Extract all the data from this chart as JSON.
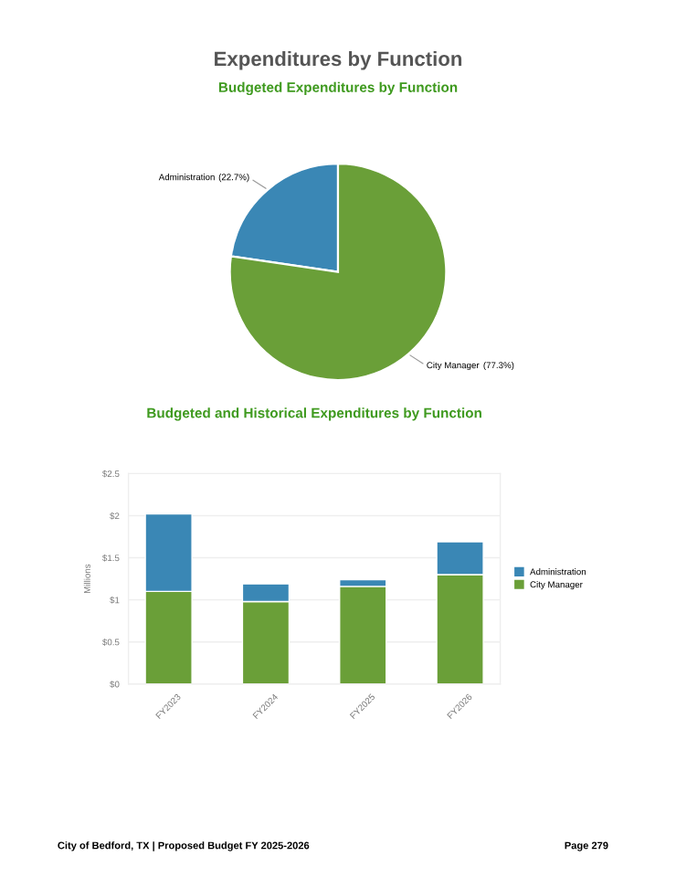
{
  "chart_data": [
    {
      "type": "pie",
      "title": "Expenditures by Function",
      "subtitle": "Budgeted Expenditures by Function",
      "categories": [
        "Administration",
        "City Manager"
      ],
      "values": [
        22.7,
        77.3
      ],
      "colors": [
        "#3a87b5",
        "#6a9f38"
      ],
      "value_labels": [
        "(22.7%)",
        "(77.3%)"
      ]
    },
    {
      "type": "bar",
      "title": "Budgeted and Historical Expenditures by Function",
      "stacked": true,
      "categories": [
        "FY2023",
        "FY2024",
        "FY2025",
        "FY2026"
      ],
      "ylabel": "Millions",
      "ylim": [
        0,
        2.5
      ],
      "yticks": [
        {
          "value": 0,
          "label": "$0"
        },
        {
          "value": 0.5,
          "label": "$0.5"
        },
        {
          "value": 1,
          "label": "$1"
        },
        {
          "value": 1.5,
          "label": "$1.5"
        },
        {
          "value": 2,
          "label": "$2"
        },
        {
          "value": 2.5,
          "label": "$2.5"
        }
      ],
      "grid": "y",
      "legend": "right",
      "series": [
        {
          "name": "City Manager",
          "color": "#6a9f38",
          "values": [
            1.1,
            0.98,
            1.16,
            1.3
          ]
        },
        {
          "name": "Administration",
          "color": "#3a87b5",
          "values": [
            0.92,
            0.21,
            0.08,
            0.39
          ]
        }
      ],
      "annotations": [
        "City of Bedford, TX | Proposed Budget FY 2025-2026",
        "Page 279"
      ]
    }
  ]
}
